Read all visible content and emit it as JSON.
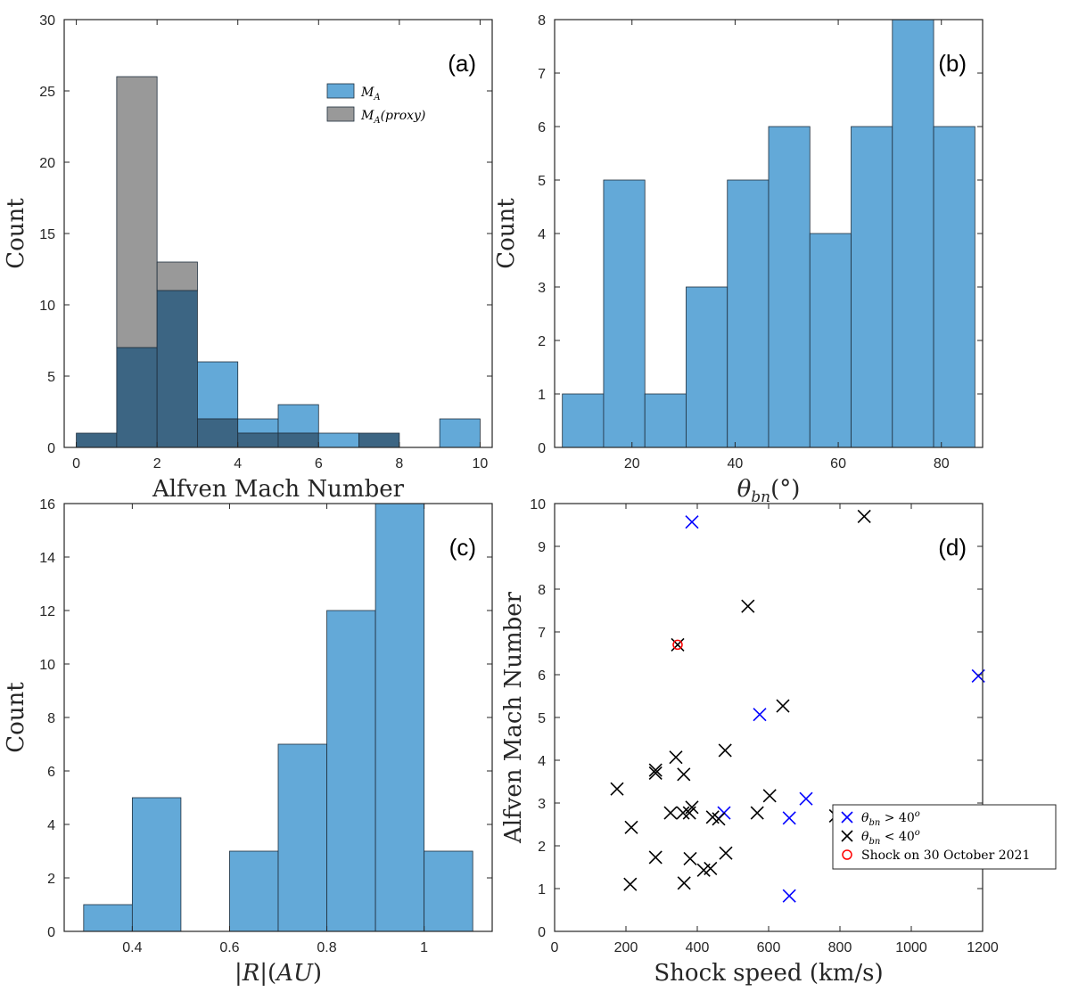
{
  "chart_data": [
    {
      "id": "a",
      "type": "bar",
      "panel_label": "(a)",
      "xlabel": "Alfven Mach Number",
      "ylabel": "Count",
      "xlim": [
        -0.3,
        10.3
      ],
      "ylim": [
        0,
        30
      ],
      "xticks": [
        "0",
        "2",
        "4",
        "6",
        "8",
        "10"
      ],
      "yticks": [
        "0",
        "5",
        "10",
        "15",
        "20",
        "25",
        "30"
      ],
      "bin_edges": [
        0,
        1,
        2,
        3,
        4,
        5,
        6,
        7,
        8,
        9,
        10
      ],
      "series": [
        {
          "name": "M_A",
          "legend": "M",
          "legend_sub": "A",
          "legend_suffix": "",
          "color": "#63a9d8",
          "values": [
            1,
            7,
            11,
            6,
            2,
            3,
            1,
            1,
            0,
            2
          ]
        },
        {
          "name": "M_A(proxy)",
          "legend": "M",
          "legend_sub": "A",
          "legend_suffix": "(proxy)",
          "color": "#999999",
          "values": [
            1,
            26,
            13,
            2,
            1,
            1,
            0,
            1,
            0,
            0
          ]
        }
      ],
      "overlap_color": "#3c6583",
      "legend_position": "top-right"
    },
    {
      "id": "b",
      "type": "bar",
      "panel_label": "(b)",
      "xlabel": "θbn(°)",
      "ylabel": "Count",
      "xlim": [
        5,
        88
      ],
      "ylim": [
        0,
        8
      ],
      "xticks": [
        "20",
        "40",
        "60",
        "80"
      ],
      "yticks": [
        "0",
        "1",
        "2",
        "3",
        "4",
        "5",
        "6",
        "7",
        "8"
      ],
      "bin_edges": [
        6.5,
        14.5,
        22.5,
        30.5,
        38.5,
        46.5,
        54.5,
        62.5,
        70.5,
        78.5,
        86.5
      ],
      "series": [
        {
          "name": "theta_bn",
          "color": "#63a9d8",
          "values": [
            1,
            5,
            1,
            3,
            5,
            6,
            4,
            6,
            8,
            6
          ]
        }
      ]
    },
    {
      "id": "c",
      "type": "bar",
      "panel_label": "(c)",
      "xlabel": "|R|(AU)",
      "ylabel": "Count",
      "xlim": [
        0.26,
        1.14
      ],
      "ylim": [
        0,
        16
      ],
      "xticks": [
        "0.4",
        "0.6",
        "0.8",
        "1"
      ],
      "yticks": [
        "0",
        "2",
        "4",
        "6",
        "8",
        "10",
        "12",
        "14",
        "16"
      ],
      "bin_edges": [
        0.3,
        0.4,
        0.5,
        0.6,
        0.7,
        0.8,
        0.9,
        1.0,
        1.1
      ],
      "series": [
        {
          "name": "R",
          "color": "#63a9d8",
          "values": [
            1,
            5,
            0,
            3,
            7,
            12,
            16,
            3
          ]
        }
      ]
    },
    {
      "id": "d",
      "type": "scatter",
      "panel_label": "(d)",
      "xlabel": "Shock speed (km/s)",
      "ylabel": "Alfven Mach Number",
      "xlim": [
        0,
        1200
      ],
      "ylim": [
        0,
        10
      ],
      "xticks": [
        "0",
        "200",
        "400",
        "600",
        "800",
        "1000",
        "1200"
      ],
      "yticks": [
        "0",
        "1",
        "2",
        "3",
        "4",
        "5",
        "6",
        "7",
        "8",
        "9",
        "10"
      ],
      "legend_position": "bottom-right",
      "series": [
        {
          "name": "θbn > 40°",
          "legend_text": "θbn > 40o",
          "marker": "x",
          "color": "#0000ff",
          "points": [
            [
              385,
              9.57
            ],
            [
              1188,
              5.97
            ],
            [
              575,
              5.07
            ],
            [
              705,
              3.1
            ],
            [
              475,
              2.77
            ],
            [
              658,
              2.65
            ],
            [
              658,
              0.83
            ]
          ]
        },
        {
          "name": "θbn < 40°",
          "legend_text": "θbn < 40o",
          "marker": "x",
          "color": "#000000",
          "points": [
            [
              868,
              9.7
            ],
            [
              542,
              7.6
            ],
            [
              345,
              6.7
            ],
            [
              640,
              5.27
            ],
            [
              478,
              4.23
            ],
            [
              340,
              4.07
            ],
            [
              283,
              3.77
            ],
            [
              283,
              3.7
            ],
            [
              362,
              3.67
            ],
            [
              175,
              3.33
            ],
            [
              603,
              3.17
            ],
            [
              385,
              2.9
            ],
            [
              378,
              2.77
            ],
            [
              325,
              2.77
            ],
            [
              360,
              2.77
            ],
            [
              568,
              2.77
            ],
            [
              788,
              2.7
            ],
            [
              443,
              2.67
            ],
            [
              460,
              2.63
            ],
            [
              215,
              2.43
            ],
            [
              480,
              1.83
            ],
            [
              283,
              1.73
            ],
            [
              380,
              1.7
            ],
            [
              437,
              1.47
            ],
            [
              418,
              1.43
            ],
            [
              212,
              1.1
            ],
            [
              363,
              1.13
            ]
          ]
        },
        {
          "name": "Shock on 30 October 2021",
          "legend_text": "Shock on 30 October 2021",
          "marker": "o",
          "color": "#ff0000",
          "points": [
            [
              345,
              6.7
            ]
          ]
        }
      ]
    }
  ]
}
